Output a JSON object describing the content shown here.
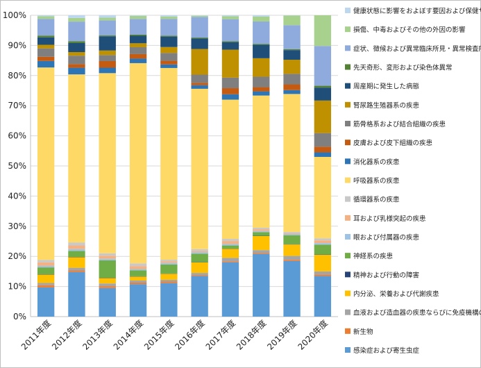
{
  "chart_data": {
    "type": "bar",
    "stacked": true,
    "percent": true,
    "title": "",
    "xlabel": "",
    "ylabel": "",
    "ylim": [
      0,
      100
    ],
    "y_ticks": [
      "0%",
      "10%",
      "20%",
      "30%",
      "40%",
      "50%",
      "60%",
      "70%",
      "80%",
      "90%",
      "100%"
    ],
    "grid": true,
    "legend_position": "right",
    "categories": [
      "2011年度",
      "2012年度",
      "2013年度",
      "2014年度",
      "2015年度",
      "2016年度",
      "2017年度",
      "2018年度",
      "2019年度",
      "2020年度"
    ],
    "series": [
      {
        "name": "感染症および寄生虫症",
        "color": "#5b9bd5",
        "values": [
          9.8,
          14.8,
          9.5,
          10.8,
          11.2,
          13.5,
          18.0,
          21.0,
          18.5,
          13.5
        ]
      },
      {
        "name": "新生物",
        "color": "#ed7d31",
        "values": [
          0.7,
          0.5,
          0.6,
          0.5,
          0.5,
          0.3,
          0.3,
          0.3,
          0.4,
          0.5
        ]
      },
      {
        "name": "血液および造血器の疾患ならびに免疫機構の障害",
        "color": "#a5a5a5",
        "values": [
          0.8,
          0.9,
          0.9,
          0.7,
          0.6,
          0.7,
          1.2,
          1.0,
          1.3,
          1.0
        ]
      },
      {
        "name": "内分泌、栄養および代謝疾患",
        "color": "#ffc000",
        "values": [
          2.8,
          3.5,
          1.8,
          1.3,
          2.0,
          3.5,
          3.0,
          4.7,
          3.8,
          5.5
        ]
      },
      {
        "name": "精神および行動の障害",
        "color": "#264478",
        "values": [
          0.1,
          0.1,
          0.1,
          0.1,
          0.1,
          0.1,
          0.1,
          0.1,
          0.1,
          0.1
        ]
      },
      {
        "name": "神経系の疾患",
        "color": "#70ad47",
        "values": [
          2.3,
          2.0,
          5.8,
          2.0,
          3.0,
          2.8,
          1.0,
          1.2,
          3.0,
          3.3
        ]
      },
      {
        "name": "眼および付属器の疾患",
        "color": "#9dc3e6",
        "values": [
          0.5,
          0.6,
          0.5,
          0.4,
          0.5,
          0.5,
          0.5,
          0.4,
          0.4,
          0.5
        ]
      },
      {
        "name": "耳および乳様突起の疾患",
        "color": "#f4b183",
        "values": [
          1.2,
          1.2,
          1.0,
          1.0,
          0.6,
          0.4,
          1.0,
          0.6,
          0.3,
          0.9
        ]
      },
      {
        "name": "循環器系の疾患",
        "color": "#c9c9c9",
        "values": [
          0.8,
          1.0,
          0.8,
          0.9,
          0.5,
          0.6,
          0.7,
          0.5,
          0.4,
          0.7
        ]
      },
      {
        "name": "呼吸器系の疾患",
        "color": "#ffd966",
        "values": [
          64.5,
          55.7,
          59.8,
          66.5,
          64.0,
          53.2,
          46.2,
          44.3,
          45.9,
          27.0
        ]
      },
      {
        "name": "消化器系の疾患",
        "color": "#2e75b6",
        "values": [
          2.2,
          2.2,
          1.8,
          1.5,
          1.2,
          1.2,
          1.8,
          1.4,
          1.3,
          1.5
        ]
      },
      {
        "name": "皮膚および皮下組織の疾患",
        "color": "#c55a11",
        "values": [
          1.4,
          1.2,
          2.2,
          1.5,
          1.2,
          0.8,
          2.0,
          1.4,
          1.9,
          1.9
        ]
      },
      {
        "name": "筋骨格系および結合組織の疾患",
        "color": "#7f7f7f",
        "values": [
          2.8,
          2.8,
          2.0,
          2.3,
          2.6,
          2.7,
          3.5,
          3.5,
          3.5,
          4.5
        ]
      },
      {
        "name": "腎尿路生殖器系の疾患",
        "color": "#bf9000",
        "values": [
          1.2,
          1.2,
          1.5,
          1.3,
          2.0,
          8.5,
          9.3,
          6.2,
          4.7,
          10.8
        ]
      },
      {
        "name": "周産期に発生した病態",
        "color": "#1f4e79",
        "values": [
          2.5,
          3.0,
          4.7,
          2.5,
          3.5,
          3.5,
          2.5,
          4.5,
          3.2,
          4.3
        ]
      },
      {
        "name": "先天奇形、変形および染色体異常",
        "color": "#548235",
        "values": [
          0.6,
          0.6,
          0.3,
          0.4,
          0.3,
          0.3,
          0.3,
          0.3,
          0.3,
          0.6
        ]
      },
      {
        "name": "症状、徴候および異常臨床所見・異常検査所見で他に分類されないもの",
        "color": "#8faadc",
        "values": [
          5.6,
          6.5,
          5.0,
          5.2,
          5.6,
          6.8,
          7.3,
          7.5,
          8.0,
          13.2
        ]
      },
      {
        "name": "損傷、中毒およびその他の外因の影響",
        "color": "#a9d18e",
        "values": [
          0.9,
          1.2,
          0.9,
          1.0,
          0.8,
          0.4,
          1.0,
          1.7,
          3.2,
          10.2
        ]
      },
      {
        "name": "健康状態に影響をおよぼす要因および保健サービスの利用",
        "color": "#bdd7ee",
        "values": [
          0.3,
          0.9,
          0.8,
          0.2,
          0.4,
          0.2,
          0.3,
          0.4,
          0.1,
          0.0
        ]
      }
    ]
  }
}
